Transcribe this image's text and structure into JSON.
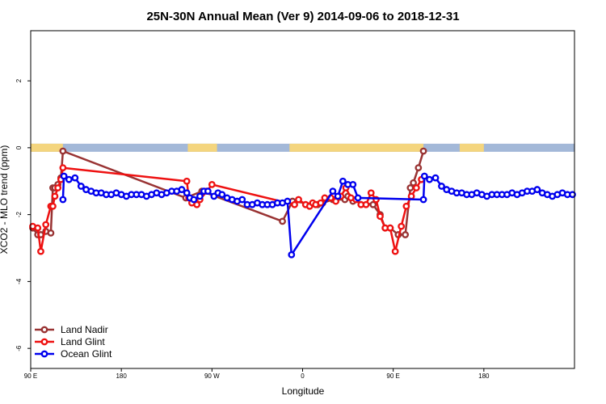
{
  "chart_data": {
    "type": "line",
    "title": "25N-30N Annual Mean (Ver 9)   2014-09-06 to 2018-12-31",
    "xlabel": "Longitude",
    "ylabel": "XCO2 - MLO trend (ppm)",
    "xlim": [
      0,
      540
    ],
    "ylim": [
      -6.6,
      3.5
    ],
    "x_ticks": [
      {
        "value": 0,
        "label": "90 E"
      },
      {
        "value": 90,
        "label": "180"
      },
      {
        "value": 180,
        "label": "90 W"
      },
      {
        "value": 270,
        "label": "0"
      },
      {
        "value": 360,
        "label": "90 E"
      },
      {
        "value": 450,
        "label": "180"
      }
    ],
    "y_ticks": [
      {
        "value": 2,
        "label": "2"
      },
      {
        "value": 0,
        "label": "0"
      },
      {
        "value": -2,
        "label": "-2"
      },
      {
        "value": -4,
        "label": "-4"
      },
      {
        "value": -6,
        "label": "-6"
      }
    ],
    "grid": false,
    "legend_position": "bottom-left",
    "colors": {
      "ocean_band": "#a3b8d8",
      "land_band": "#f4d57e"
    },
    "land_ranges": [
      [
        0,
        32
      ],
      [
        156,
        185
      ],
      [
        257,
        390
      ],
      [
        426,
        450
      ]
    ],
    "series": [
      {
        "name": "Land Nadir",
        "color": "#993333",
        "x": [
          2,
          7,
          10,
          15,
          20,
          22,
          24,
          27,
          30,
          32,
          154,
          170,
          250,
          260,
          285,
          290,
          300,
          312,
          315,
          320,
          340,
          347,
          352,
          357,
          365,
          372,
          377,
          380,
          385,
          390
        ],
        "y": [
          -2.4,
          -2.6,
          -2.6,
          -2.5,
          -2.55,
          -1.2,
          -1.2,
          -1.1,
          -0.9,
          -0.1,
          -1.5,
          -1.3,
          -2.2,
          -1.6,
          -1.7,
          -1.65,
          -1.55,
          -1.55,
          -1.45,
          -1.6,
          -1.7,
          -2.0,
          -2.4,
          -2.4,
          -2.6,
          -2.6,
          -1.2,
          -1.05,
          -0.6,
          -0.1
        ]
      },
      {
        "name": "Land Glint",
        "color": "#ee1111",
        "x": [
          2,
          7,
          10,
          15,
          20,
          22,
          24,
          27,
          30,
          32,
          155,
          157,
          160,
          165,
          168,
          175,
          180,
          262,
          266,
          273,
          277,
          280,
          283,
          288,
          292,
          298,
          303,
          308,
          313,
          318,
          323,
          328,
          333,
          338,
          343,
          347,
          352,
          357,
          362,
          368,
          373,
          378,
          383,
          388
        ],
        "y": [
          -2.35,
          -2.4,
          -3.1,
          -2.3,
          -1.75,
          -1.75,
          -1.45,
          -1.2,
          -0.95,
          -0.6,
          -1.0,
          -1.5,
          -1.65,
          -1.7,
          -1.55,
          -1.3,
          -1.1,
          -1.7,
          -1.55,
          -1.7,
          -1.75,
          -1.65,
          -1.7,
          -1.65,
          -1.5,
          -1.5,
          -1.6,
          -1.45,
          -1.2,
          -1.5,
          -1.55,
          -1.7,
          -1.7,
          -1.35,
          -1.55,
          -2.05,
          -2.4,
          -2.4,
          -3.1,
          -2.35,
          -1.75,
          -1.45,
          -1.2,
          -0.95
        ]
      },
      {
        "name": "Ocean Glint",
        "color": "#0000ee",
        "x": [
          32,
          33,
          38,
          44,
          50,
          55,
          60,
          65,
          70,
          75,
          80,
          85,
          90,
          95,
          100,
          105,
          110,
          115,
          120,
          125,
          130,
          135,
          140,
          145,
          150,
          155,
          158,
          162,
          168,
          172,
          176,
          182,
          186,
          190,
          195,
          200,
          205,
          210,
          215,
          220,
          225,
          230,
          235,
          240,
          245,
          250,
          255,
          259,
          300,
          305,
          310,
          315,
          320,
          325,
          390,
          391,
          396,
          402,
          408,
          413,
          418,
          423,
          428,
          433,
          438,
          443,
          448,
          453,
          458,
          463,
          468,
          473,
          478,
          483,
          488,
          493,
          498,
          503,
          508,
          513,
          518,
          523,
          528,
          533,
          538
        ],
        "y": [
          -1.55,
          -0.85,
          -0.95,
          -0.9,
          -1.15,
          -1.25,
          -1.3,
          -1.35,
          -1.35,
          -1.4,
          -1.4,
          -1.35,
          -1.4,
          -1.45,
          -1.4,
          -1.4,
          -1.4,
          -1.45,
          -1.4,
          -1.35,
          -1.4,
          -1.35,
          -1.3,
          -1.3,
          -1.25,
          -1.35,
          -1.5,
          -1.55,
          -1.45,
          -1.3,
          -1.3,
          -1.45,
          -1.35,
          -1.4,
          -1.5,
          -1.55,
          -1.6,
          -1.55,
          -1.7,
          -1.7,
          -1.65,
          -1.7,
          -1.7,
          -1.7,
          -1.65,
          -1.65,
          -1.6,
          -3.2,
          -1.3,
          -1.45,
          -1.0,
          -1.1,
          -1.1,
          -1.5,
          -1.55,
          -0.85,
          -0.95,
          -0.9,
          -1.15,
          -1.25,
          -1.3,
          -1.35,
          -1.35,
          -1.4,
          -1.4,
          -1.35,
          -1.4,
          -1.45,
          -1.4,
          -1.4,
          -1.4,
          -1.4,
          -1.35,
          -1.4,
          -1.35,
          -1.3,
          -1.3,
          -1.25,
          -1.35,
          -1.4,
          -1.45,
          -1.4,
          -1.35,
          -1.4,
          -1.4
        ]
      }
    ]
  }
}
